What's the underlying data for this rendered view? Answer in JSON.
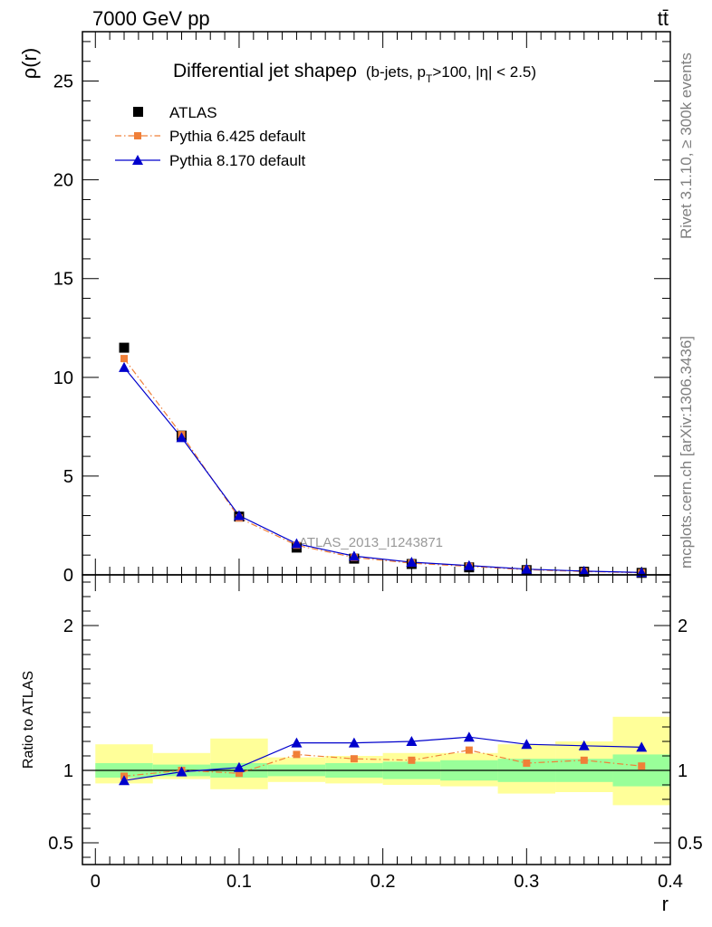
{
  "header": {
    "energy_label": "7000 GeV pp",
    "process_label": "tt̄"
  },
  "side_labels": {
    "rivet": "Rivet 3.1.10, ≥ 300k events",
    "mcplots": "mcplots.cern.ch [arXiv:1306.3436]"
  },
  "colors": {
    "atlas": "#000000",
    "pythia6": "#f07f38",
    "pythia8": "#0000cc",
    "band_inner": "#99ff99",
    "band_outer": "#ffff99",
    "watermark": "#999999",
    "side_text": "#7f7f7f"
  },
  "chart_data": [
    {
      "type": "scatter",
      "panel": "main",
      "title_main": "Differential jet shapeρ",
      "title_cuts": "(b-jets, p",
      "title_sub": "T",
      "title_tail": ">100, |η| < 2.5)",
      "ylabel": "ρ(r)",
      "xlim": [
        -0.009,
        0.4
      ],
      "ylim": [
        0,
        27.5
      ],
      "yticks": [
        0,
        5,
        10,
        15,
        20,
        25
      ],
      "ytick_labels": [
        "0",
        "5",
        "10",
        "15",
        "20",
        "25"
      ],
      "watermark": "ATLAS_2013_I1243871",
      "x": [
        0.02,
        0.06,
        0.1,
        0.14,
        0.18,
        0.22,
        0.26,
        0.3,
        0.34,
        0.38
      ],
      "series": [
        {
          "name": "ATLAS",
          "marker": "square",
          "values": [
            11.5,
            7.05,
            2.95,
            1.38,
            0.82,
            0.55,
            0.38,
            0.24,
            0.16,
            0.1
          ]
        },
        {
          "name": "Pythia 6.425 default",
          "marker": "square-small",
          "line": "dashdot",
          "values": [
            10.95,
            7.1,
            2.88,
            1.5,
            0.88,
            0.59,
            0.43,
            0.26,
            0.17,
            0.105
          ]
        },
        {
          "name": "Pythia 8.170 default",
          "marker": "triangle",
          "line": "solid",
          "values": [
            10.5,
            6.95,
            3.0,
            1.58,
            0.95,
            0.64,
            0.47,
            0.29,
            0.19,
            0.12
          ]
        }
      ]
    },
    {
      "type": "scatter",
      "panel": "ratio",
      "ylabel": "Ratio to ATLAS",
      "xlabel": "r",
      "xlim": [
        -0.009,
        0.4
      ],
      "ylim": [
        0.35,
        2.35
      ],
      "yticks": [
        0.5,
        1,
        2
      ],
      "ytick_labels": [
        "0.5",
        "1",
        "2"
      ],
      "xticks": [
        0,
        0.1,
        0.2,
        0.3,
        0.4
      ],
      "xtick_labels": [
        "0",
        "0.1",
        "0.2",
        "0.3",
        "0.4"
      ],
      "bins": [
        [
          0.0,
          0.04
        ],
        [
          0.04,
          0.08
        ],
        [
          0.08,
          0.12
        ],
        [
          0.12,
          0.16
        ],
        [
          0.16,
          0.2
        ],
        [
          0.2,
          0.24
        ],
        [
          0.24,
          0.28
        ],
        [
          0.28,
          0.32
        ],
        [
          0.32,
          0.36
        ],
        [
          0.36,
          0.4
        ]
      ],
      "band_inner": [
        [
          0.95,
          1.05
        ],
        [
          0.96,
          1.04
        ],
        [
          0.95,
          1.05
        ],
        [
          0.96,
          1.04
        ],
        [
          0.95,
          1.05
        ],
        [
          0.94,
          1.06
        ],
        [
          0.93,
          1.07
        ],
        [
          0.92,
          1.08
        ],
        [
          0.92,
          1.08
        ],
        [
          0.89,
          1.11
        ]
      ],
      "band_outer": [
        [
          0.91,
          1.18
        ],
        [
          0.94,
          1.12
        ],
        [
          0.87,
          1.22
        ],
        [
          0.92,
          1.09
        ],
        [
          0.91,
          1.1
        ],
        [
          0.9,
          1.12
        ],
        [
          0.89,
          1.12
        ],
        [
          0.84,
          1.18
        ],
        [
          0.85,
          1.2
        ],
        [
          0.76,
          1.37
        ]
      ],
      "x": [
        0.02,
        0.06,
        0.1,
        0.14,
        0.18,
        0.22,
        0.26,
        0.3,
        0.34,
        0.38
      ],
      "series": [
        {
          "name": "Pythia 6.425 default",
          "values": [
            0.96,
            1.0,
            0.98,
            1.11,
            1.08,
            1.07,
            1.14,
            1.05,
            1.07,
            1.03
          ]
        },
        {
          "name": "Pythia 8.170 default",
          "values": [
            0.93,
            0.99,
            1.02,
            1.19,
            1.19,
            1.2,
            1.23,
            1.18,
            1.17,
            1.16
          ]
        }
      ]
    }
  ]
}
